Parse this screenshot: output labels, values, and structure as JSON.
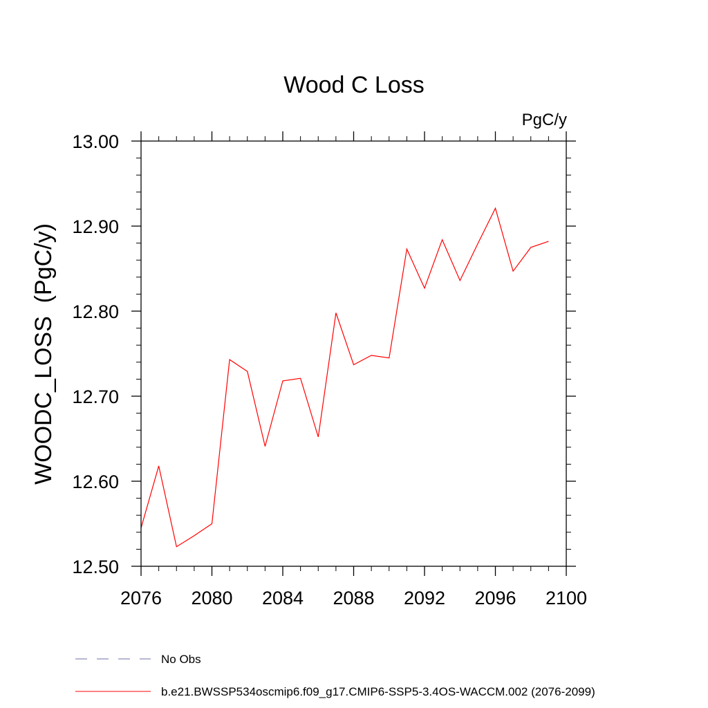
{
  "chart_data": {
    "type": "line",
    "title": "Wood C Loss",
    "units_label": "PgC/y",
    "ylabel": "WOODC_LOSS  (PgC/y)",
    "xlabel": "",
    "xlim": [
      2076,
      2100
    ],
    "ylim": [
      12.5,
      13.0
    ],
    "x_ticks": [
      2076,
      2080,
      2084,
      2088,
      2092,
      2096,
      2100
    ],
    "y_ticks": [
      12.5,
      12.6,
      12.7,
      12.8,
      12.9,
      13.0
    ],
    "y_tick_labels": [
      "12.50",
      "12.60",
      "12.70",
      "12.80",
      "12.90",
      "13.00"
    ],
    "grid": false,
    "legend_position": "bottom-left",
    "series": [
      {
        "name": "b.e21.BWSSP534oscmip6.f09_g17.CMIP6-SSP5-3.4OS-WACCM.002 (2076-2099)",
        "color": "#ff0000",
        "style": "solid",
        "x": [
          2076,
          2077,
          2078,
          2079,
          2080,
          2081,
          2082,
          2083,
          2084,
          2085,
          2086,
          2087,
          2088,
          2089,
          2090,
          2091,
          2092,
          2093,
          2094,
          2095,
          2096,
          2097,
          2098,
          2099
        ],
        "y": [
          12.545,
          12.618,
          12.523,
          12.536,
          12.55,
          12.743,
          12.729,
          12.641,
          12.718,
          12.721,
          12.652,
          12.798,
          12.737,
          12.748,
          12.745,
          12.873,
          12.827,
          12.884,
          12.836,
          12.879,
          12.921,
          12.847,
          12.875,
          12.882
        ]
      }
    ],
    "legend": [
      {
        "label": "No Obs",
        "color": "#6e6ea8",
        "style": "dashed"
      },
      {
        "label": "b.e21.BWSSP534oscmip6.f09_g17.CMIP6-SSP5-3.4OS-WACCM.002 (2076-2099)",
        "color": "#ff0000",
        "style": "solid"
      }
    ]
  }
}
